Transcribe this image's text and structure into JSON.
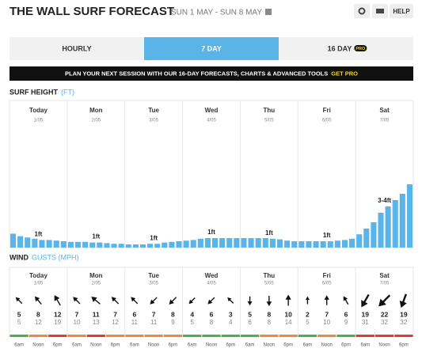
{
  "header": {
    "title": "THE WALL SURF FORECAST",
    "subtitle": "SUN 1 MAY - SUN 8 MAY",
    "help": "HELP"
  },
  "tabs": [
    {
      "label": "HOURLY"
    },
    {
      "label": "7 DAY",
      "active": true
    },
    {
      "label": "16 DAY",
      "badge": "PRO"
    }
  ],
  "banner": {
    "text": "PLAN YOUR NEXT SESSION WITH OUR 16-DAY FORECASTS, CHARTS & ADVANCED TOOLS",
    "link": "GET PRO"
  },
  "surf": {
    "title": "SURF HEIGHT",
    "unit": "(FT)",
    "color": "#5ab4e8",
    "days": [
      {
        "name": "Today",
        "date": "1/05",
        "label": "1ft"
      },
      {
        "name": "Mon",
        "date": "2/05",
        "label": "1ft"
      },
      {
        "name": "Tue",
        "date": "3/05",
        "label": "1ft"
      },
      {
        "name": "Wed",
        "date": "4/05",
        "label": "1ft"
      },
      {
        "name": "Thu",
        "date": "5/05",
        "label": "1ft"
      },
      {
        "name": "Fri",
        "date": "6/05",
        "label": "1ft"
      },
      {
        "name": "Sat",
        "date": "7/05",
        "label": "3-4ft"
      }
    ],
    "values": [
      1.1,
      0.9,
      0.8,
      0.7,
      0.6,
      0.6,
      0.55,
      0.5,
      0.45,
      0.45,
      0.45,
      0.4,
      0.4,
      0.35,
      0.3,
      0.3,
      0.25,
      0.25,
      0.25,
      0.3,
      0.3,
      0.4,
      0.45,
      0.5,
      0.55,
      0.6,
      0.7,
      0.75,
      0.75,
      0.75,
      0.75,
      0.75,
      0.75,
      0.75,
      0.75,
      0.75,
      0.7,
      0.65,
      0.55,
      0.5,
      0.5,
      0.5,
      0.5,
      0.5,
      0.5,
      0.55,
      0.6,
      0.7,
      1.05,
      1.5,
      2,
      2.75,
      3.25,
      3.75,
      4.25,
      5
    ]
  },
  "wind": {
    "title": "WIND",
    "unit": "GUSTS (MPH)",
    "times": [
      "6am",
      "Noon",
      "6pm"
    ],
    "days": [
      {
        "speed": [
          5,
          8,
          12
        ],
        "gust": [
          5,
          12,
          19
        ],
        "dir": [
          315,
          320,
          330
        ],
        "rating": [
          "#4caf50",
          "#f0883a",
          "#e53935"
        ]
      },
      {
        "speed": [
          7,
          11,
          7
        ],
        "gust": [
          10,
          13,
          12
        ],
        "dir": [
          315,
          310,
          315
        ],
        "rating": [
          "#f0883a",
          "#e53935",
          "#f0883a"
        ]
      },
      {
        "speed": [
          6,
          7,
          8
        ],
        "gust": [
          11,
          11,
          9
        ],
        "dir": [
          315,
          225,
          225
        ],
        "rating": [
          "#f0883a",
          "#f0883a",
          "#f0883a"
        ]
      },
      {
        "speed": [
          4,
          6,
          3
        ],
        "gust": [
          5,
          8,
          4
        ],
        "dir": [
          225,
          225,
          315
        ],
        "rating": [
          "#4caf50",
          "#4caf50",
          "#4caf50"
        ]
      },
      {
        "speed": [
          5,
          8,
          10
        ],
        "gust": [
          6,
          8,
          14
        ],
        "dir": [
          180,
          180,
          0
        ],
        "rating": [
          "#4caf50",
          "#f0883a",
          "#f0883a"
        ]
      },
      {
        "speed": [
          2,
          7,
          6
        ],
        "gust": [
          5,
          10,
          9
        ],
        "dir": [
          0,
          0,
          330
        ],
        "rating": [
          "#4caf50",
          "#f0883a",
          "#4caf50"
        ]
      },
      {
        "speed": [
          19,
          22,
          19
        ],
        "gust": [
          31,
          32,
          32
        ],
        "dir": [
          210,
          225,
          200
        ],
        "rating": [
          "#e53935",
          "#e53935",
          "#e53935"
        ]
      }
    ]
  }
}
